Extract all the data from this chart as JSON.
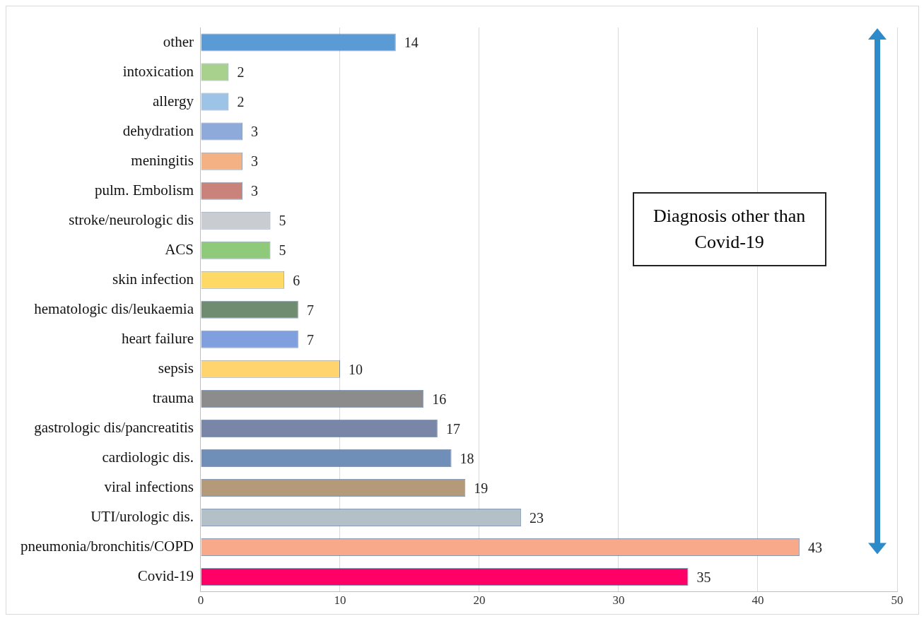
{
  "chart_data": {
    "type": "bar",
    "orientation": "horizontal",
    "categories": [
      "other",
      "intoxication",
      "allergy",
      "dehydration",
      "meningitis",
      "pulm. Embolism",
      "stroke/neurologic dis",
      "ACS",
      "skin infection",
      "hematologic dis/leukaemia",
      "heart failure",
      "sepsis",
      "trauma",
      "gastrologic dis/pancreatitis",
      "cardiologic dis.",
      "viral infections",
      "UTI/urologic dis.",
      "pneumonia/bronchitis/COPD",
      "Covid-19"
    ],
    "values": [
      14,
      2,
      2,
      3,
      3,
      3,
      5,
      5,
      6,
      7,
      7,
      10,
      16,
      17,
      18,
      19,
      23,
      43,
      35
    ],
    "colors": [
      "#5b9bd5",
      "#a9d18e",
      "#9dc3e6",
      "#8eaadb",
      "#f4b183",
      "#c9837a",
      "#c9ccd0",
      "#8fc97a",
      "#ffd966",
      "#6f8b70",
      "#7f9fdf",
      "#ffd36e",
      "#8c8c8c",
      "#7a86a8",
      "#6f8fb8",
      "#b59a7a",
      "#b4c0c8",
      "#f8a98a",
      "#ff0066"
    ],
    "xlim": [
      0,
      50
    ],
    "xticks": [
      0,
      10,
      20,
      30,
      40,
      50
    ],
    "grid": "x",
    "data_labels": true,
    "annotations": [
      "Diagnosis other than Covid-19"
    ]
  }
}
